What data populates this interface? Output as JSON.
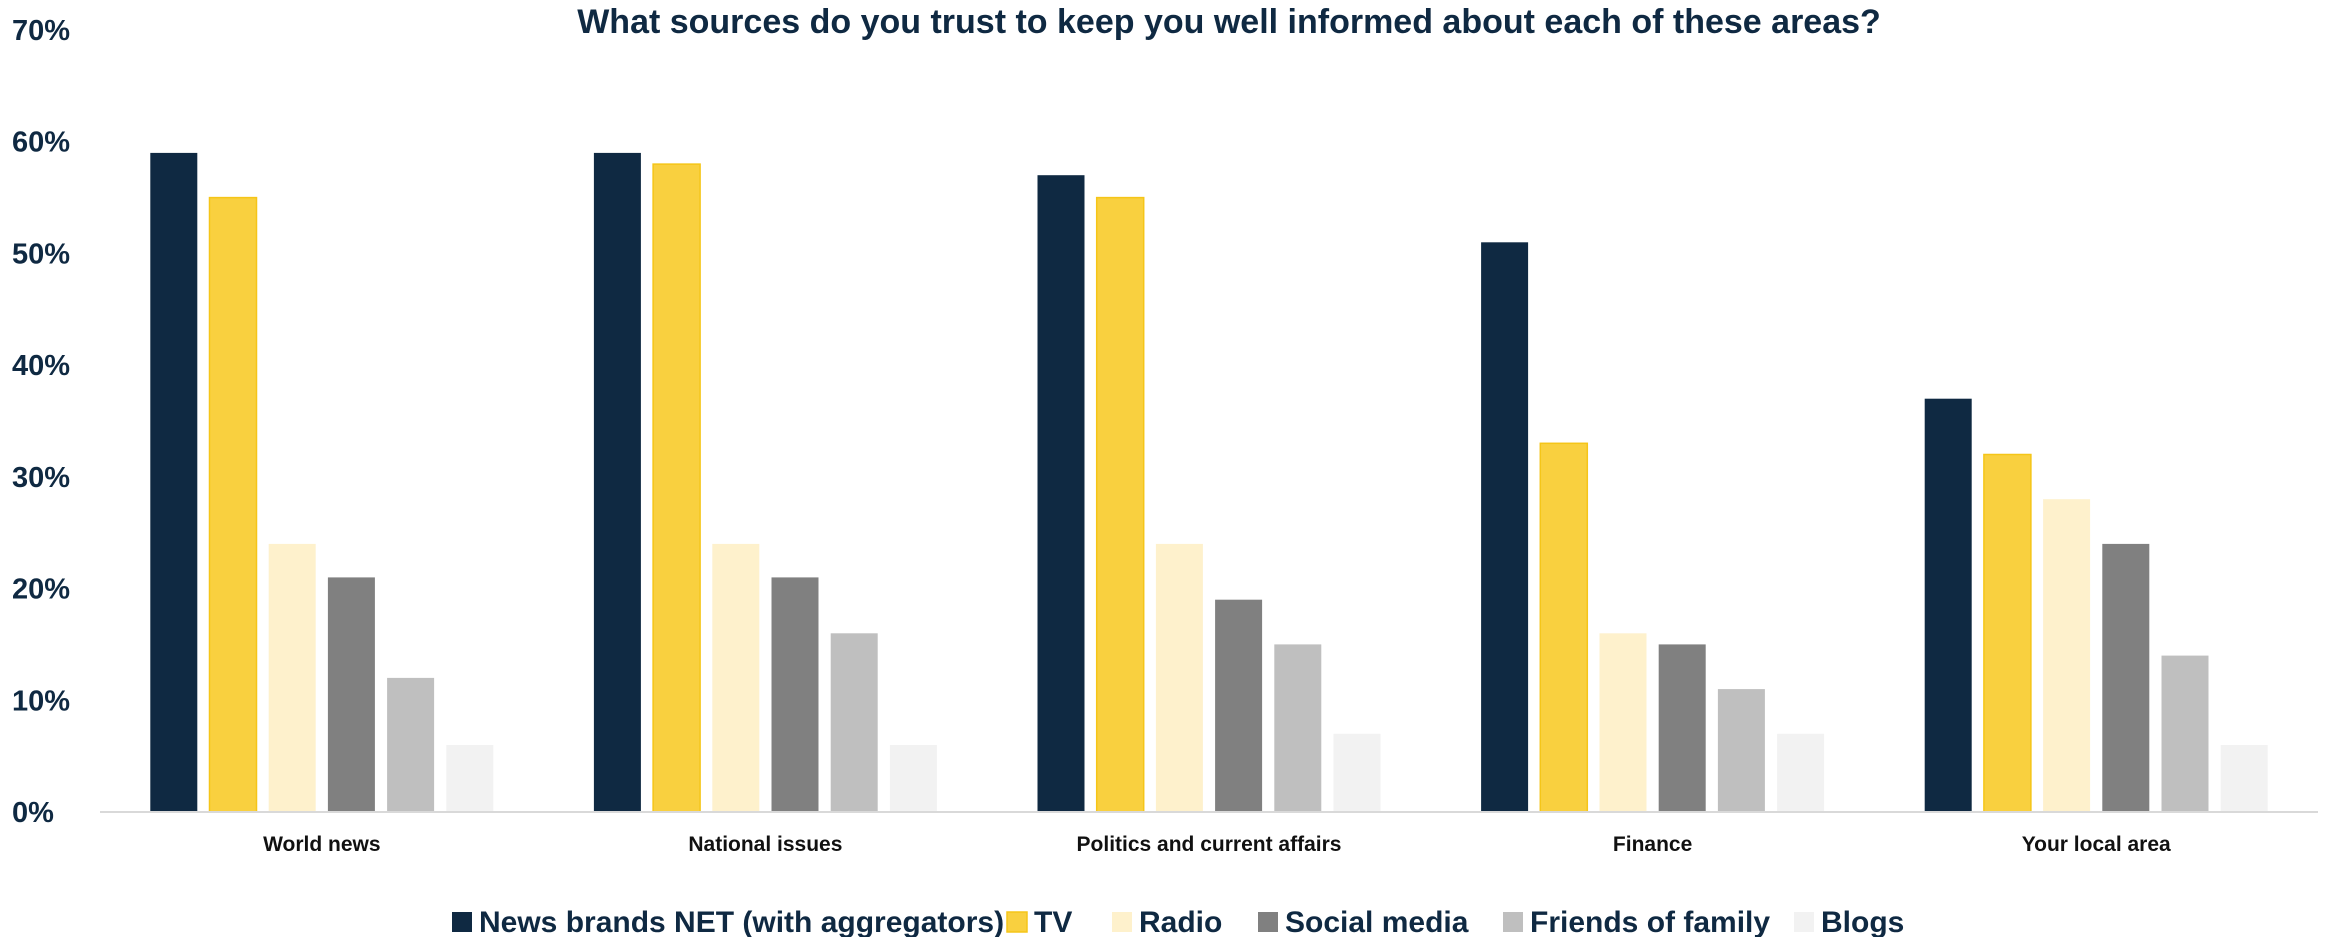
{
  "chart_data": {
    "type": "bar",
    "title": "What sources do you trust to keep you well informed about each of these areas?",
    "categories": [
      "World news",
      "National issues",
      "Politics and current affairs",
      "Finance",
      "Your local area"
    ],
    "series": [
      {
        "name": "News brands NET (with aggregators)",
        "color": "#0f2942",
        "values": [
          59,
          59,
          57,
          51,
          37
        ]
      },
      {
        "name": "TV",
        "color": "#f9d03f",
        "values": [
          55,
          58,
          55,
          33,
          32
        ]
      },
      {
        "name": "Radio",
        "color": "#fef1cc",
        "values": [
          24,
          24,
          24,
          16,
          28
        ]
      },
      {
        "name": "Social media",
        "color": "#808080",
        "values": [
          21,
          21,
          19,
          15,
          24
        ]
      },
      {
        "name": "Friends of family",
        "color": "#bfbfbf",
        "values": [
          12,
          16,
          15,
          11,
          14
        ]
      },
      {
        "name": "Blogs",
        "color": "#f2f2f2",
        "values": [
          6,
          6,
          7,
          7,
          6
        ]
      }
    ],
    "ylim": [
      0,
      70
    ],
    "yticks": [
      "0%",
      "10%",
      "20%",
      "30%",
      "40%",
      "50%",
      "60%",
      "70%"
    ],
    "grid": false,
    "legend": "bottom",
    "axis_color": "#d9d9d9"
  }
}
